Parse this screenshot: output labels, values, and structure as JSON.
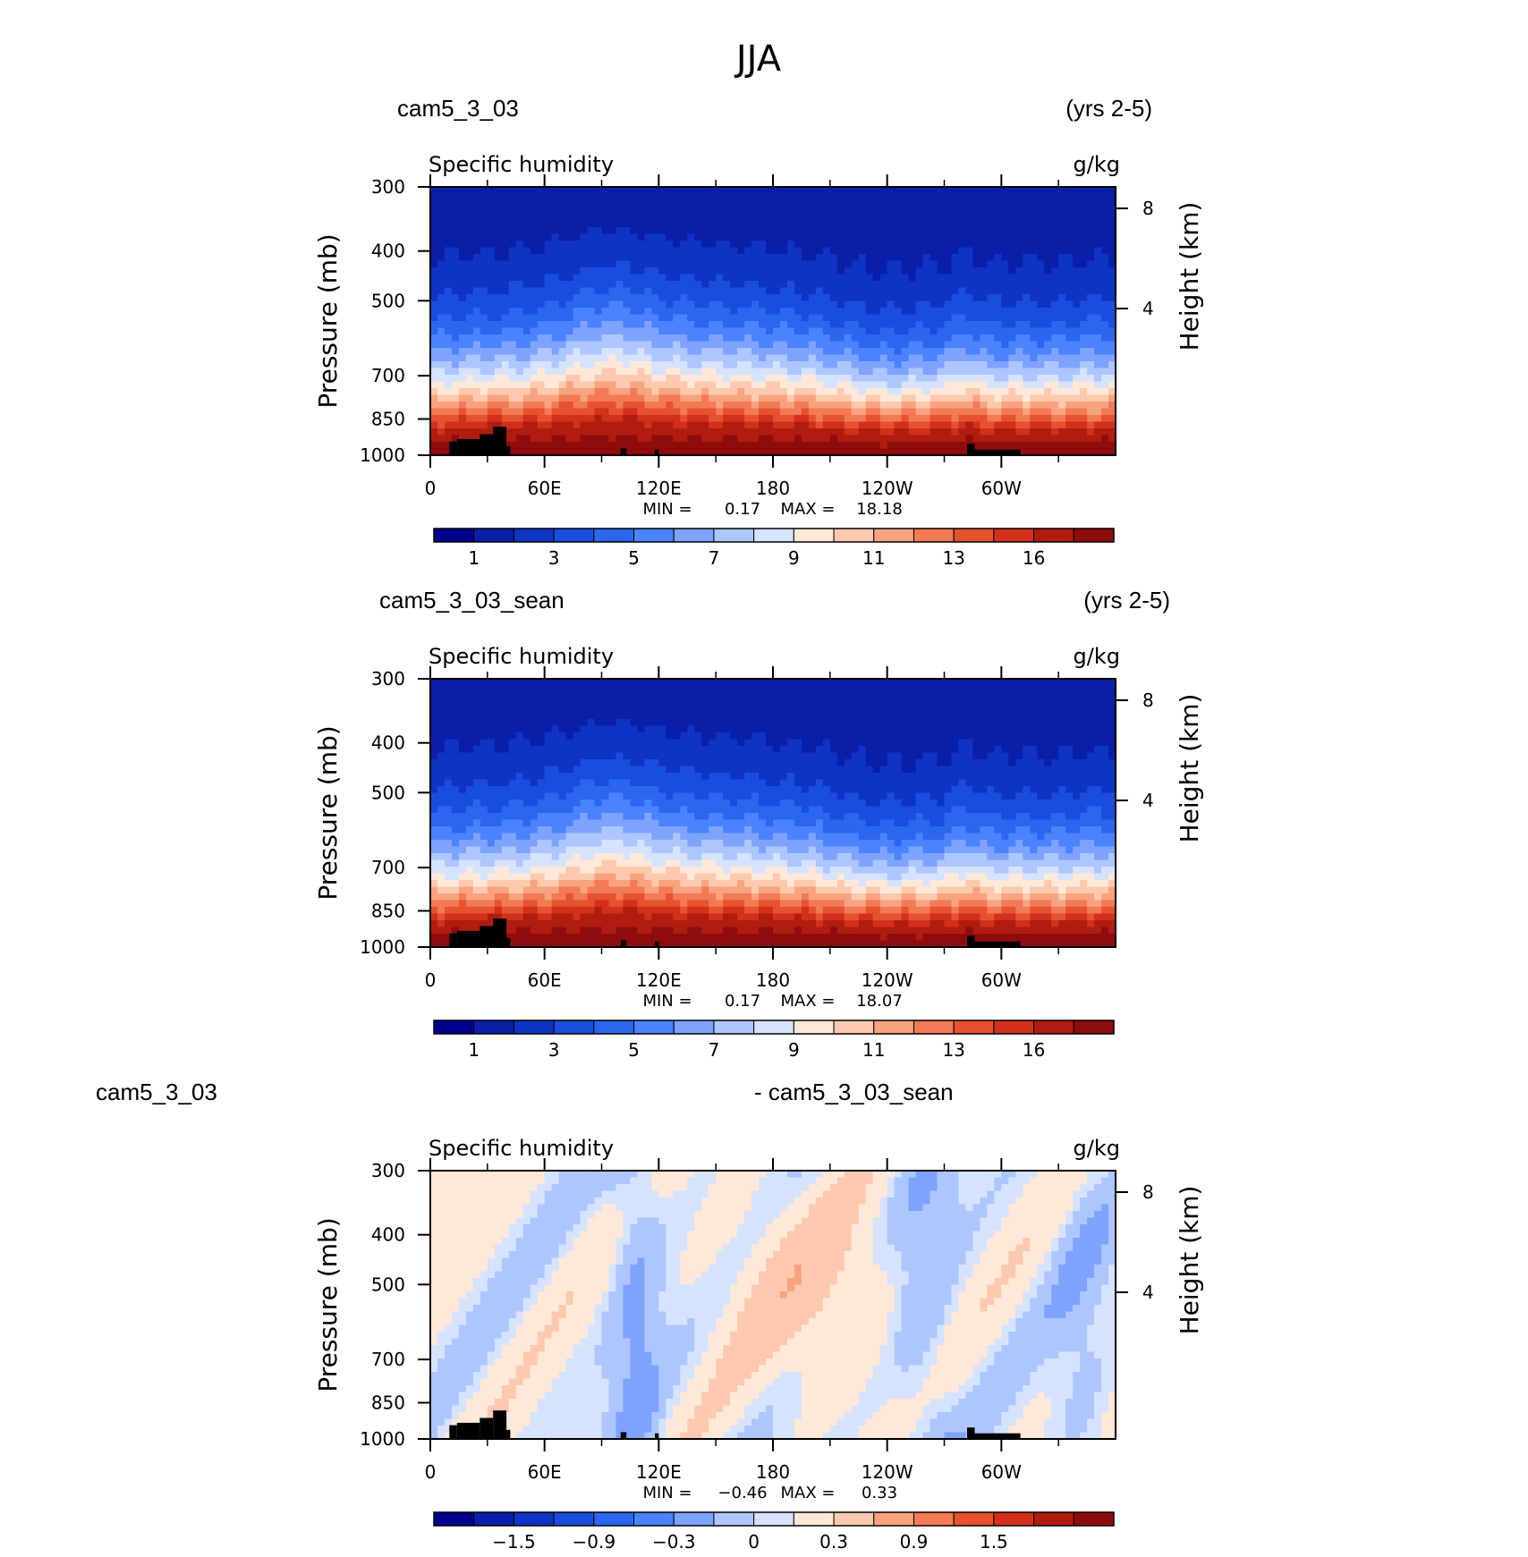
{
  "page_title": "JJA",
  "chart_data": [
    {
      "type": "heatmap",
      "case": "cam5_3_03",
      "period": "(yrs 2-5)",
      "variable": "Specific humidity",
      "units": "g/kg",
      "x_tick_labels": [
        "0",
        "60E",
        "120E",
        "180",
        "120W",
        "60W"
      ],
      "x_ticks_deg": [
        0,
        60,
        120,
        180,
        240,
        300
      ],
      "xlim": [
        0,
        360
      ],
      "ylabel": "Pressure (mb)",
      "y_scale": "log",
      "ylim": [
        1000,
        300
      ],
      "y_tick_labels": [
        "300",
        "400",
        "500",
        "700",
        "850",
        "1000"
      ],
      "y_ticks": [
        300,
        400,
        500,
        700,
        850,
        1000
      ],
      "right_axis_label": "Height (km)",
      "right_ticks": [
        "8",
        "4"
      ],
      "stats": {
        "min_label": "MIN =",
        "min": "0.17",
        "max_label": "MAX =",
        "max": "18.18"
      },
      "colorbar_labels": [
        "1",
        "3",
        "5",
        "7",
        "9",
        "11",
        "13",
        "16"
      ],
      "colors": [
        "#00008f",
        "#0a1fa8",
        "#0f33c4",
        "#1a4ddc",
        "#2a66f0",
        "#4a82ff",
        "#7ea3ff",
        "#aec6ff",
        "#d5e3ff",
        "#ffe8d8",
        "#fcc9ae",
        "#f8a37f",
        "#f27a55",
        "#e6512f",
        "#d1301a",
        "#b01c10",
        "#8f0c0c"
      ]
    },
    {
      "type": "heatmap",
      "case": "cam5_3_03_sean",
      "period": "(yrs 2-5)",
      "variable": "Specific humidity",
      "units": "g/kg",
      "x_tick_labels": [
        "0",
        "60E",
        "120E",
        "180",
        "120W",
        "60W"
      ],
      "x_ticks_deg": [
        0,
        60,
        120,
        180,
        240,
        300
      ],
      "xlim": [
        0,
        360
      ],
      "ylabel": "Pressure (mb)",
      "y_scale": "log",
      "ylim": [
        1000,
        300
      ],
      "y_tick_labels": [
        "300",
        "400",
        "500",
        "700",
        "850",
        "1000"
      ],
      "y_ticks": [
        300,
        400,
        500,
        700,
        850,
        1000
      ],
      "right_axis_label": "Height (km)",
      "right_ticks": [
        "8",
        "4"
      ],
      "stats": {
        "min_label": "MIN =",
        "min": "0.17",
        "max_label": "MAX =",
        "max": "18.07"
      },
      "colorbar_labels": [
        "1",
        "3",
        "5",
        "7",
        "9",
        "11",
        "13",
        "16"
      ],
      "colors": [
        "#00008f",
        "#0a1fa8",
        "#0f33c4",
        "#1a4ddc",
        "#2a66f0",
        "#4a82ff",
        "#7ea3ff",
        "#aec6ff",
        "#d5e3ff",
        "#ffe8d8",
        "#fcc9ae",
        "#f8a37f",
        "#f27a55",
        "#e6512f",
        "#d1301a",
        "#b01c10",
        "#8f0c0c"
      ]
    },
    {
      "type": "heatmap",
      "case": "cam5_3_03",
      "case2": "- cam5_3_03_sean",
      "variable": "Specific humidity",
      "units": "g/kg",
      "x_tick_labels": [
        "0",
        "60E",
        "120E",
        "180",
        "120W",
        "60W"
      ],
      "x_ticks_deg": [
        0,
        60,
        120,
        180,
        240,
        300
      ],
      "xlim": [
        0,
        360
      ],
      "ylabel": "Pressure (mb)",
      "y_scale": "log",
      "ylim": [
        1000,
        300
      ],
      "y_tick_labels": [
        "300",
        "400",
        "500",
        "700",
        "850",
        "1000"
      ],
      "y_ticks": [
        300,
        400,
        500,
        700,
        850,
        1000
      ],
      "right_axis_label": "Height (km)",
      "right_ticks": [
        "8",
        "4"
      ],
      "stats": {
        "min_label": "MIN =",
        "min": "−0.46",
        "max_label": "MAX =",
        "max": "0.33"
      },
      "colorbar_labels": [
        "−1.5",
        "−0.9",
        "−0.3",
        "0",
        "0.3",
        "0.9",
        "1.5"
      ],
      "colors": [
        "#00008f",
        "#0a1fa8",
        "#0f33c4",
        "#1a4ddc",
        "#2a66f0",
        "#4a82ff",
        "#7ea3ff",
        "#aec6ff",
        "#d5e3ff",
        "#ffe8d8",
        "#fcc9ae",
        "#f8a37f",
        "#f27a55",
        "#e6512f",
        "#d1301a",
        "#b01c10",
        "#8f0c0c"
      ]
    }
  ]
}
